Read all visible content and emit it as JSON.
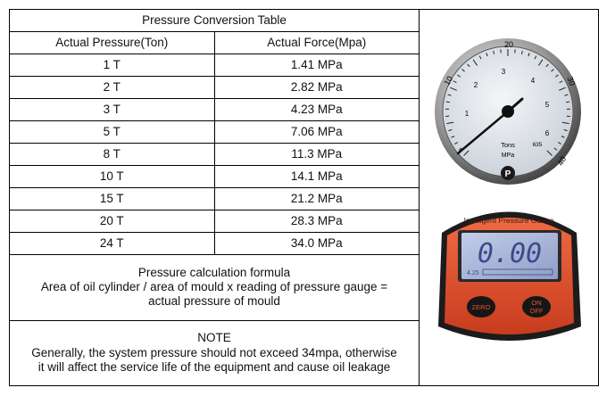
{
  "table": {
    "title": "Pressure Conversion Table",
    "headers": [
      "Actual Pressure(Ton)",
      "Actual Force(Mpa)"
    ],
    "rows": [
      {
        "ton": "1 T",
        "force": "1.41 MPa"
      },
      {
        "ton": "2 T",
        "force": "2.82 MPa"
      },
      {
        "ton": "3 T",
        "force": "4.23 MPa"
      },
      {
        "ton": "5 T",
        "force": "7.06 MPa"
      },
      {
        "ton": "8 T",
        "force": "11.3 MPa"
      },
      {
        "ton": "10 T",
        "force": "14.1 MPa"
      },
      {
        "ton": "15 T",
        "force": "21.2 MPa"
      },
      {
        "ton": "20 T",
        "force": "28.3 MPa"
      },
      {
        "ton": "24 T",
        "force": "34.0 MPa"
      }
    ],
    "formula": {
      "title": "Pressure calculation formula",
      "line1": "Area of oil cylinder / area of mould x reading of pressure gauge =",
      "line2": "actual pressure of mould"
    },
    "note": {
      "title": "NOTE",
      "line1": "Generally, the system pressure should not exceed 34mpa, otherwise",
      "line2": "it will affect the service life of the equipment and cause oil leakage"
    }
  },
  "analog_gauge": {
    "outer_scale": [
      "10",
      "20",
      "30",
      "40"
    ],
    "inner_scale": [
      "1",
      "2",
      "3",
      "4",
      "5",
      "6"
    ],
    "unit_tons": "Tons",
    "unit_mpa": "MPa",
    "code": "635"
  },
  "digital_gauge": {
    "brand": "Intelligent Pressure Gauge",
    "reading": "0.00",
    "bar_label": "4.25",
    "zero_label": "ZERO",
    "onoff_line1": "ON",
    "onoff_line2": "OFF",
    "colors": {
      "body": "#e04a28",
      "lcd": "#a9b6d8"
    }
  }
}
